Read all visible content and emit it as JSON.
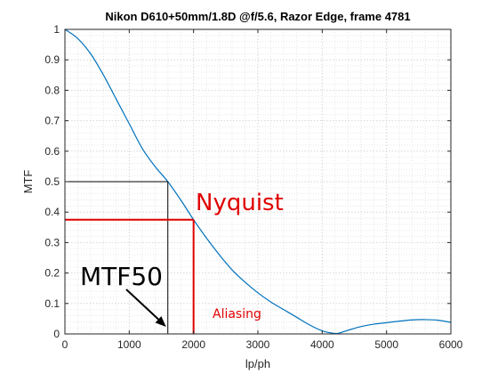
{
  "chart_data": {
    "type": "line",
    "title": "Nikon D610+50mm/1.8D @f/5.6, Razor Edge, frame 4781",
    "xlabel": "lp/ph",
    "ylabel": "MTF",
    "xlim": [
      0,
      6000
    ],
    "ylim": [
      0,
      1
    ],
    "x_ticks": [
      0,
      1000,
      2000,
      3000,
      4000,
      5000,
      6000
    ],
    "y_ticks": [
      0,
      0.1,
      0.2,
      0.3,
      0.4,
      0.5,
      0.6,
      0.7,
      0.8,
      0.9,
      1
    ],
    "x_tick_labels": [
      "0",
      "1000",
      "2000",
      "3000",
      "4000",
      "5000",
      "6000"
    ],
    "y_tick_labels": [
      "0",
      "0.1",
      "0.2",
      "0.3",
      "0.4",
      "0.5",
      "0.6",
      "0.7",
      "0.8",
      "0.9",
      "1"
    ],
    "grid": "minor dotted",
    "series": [
      {
        "color": "#0072bd",
        "x": [
          0,
          200,
          400,
          600,
          800,
          1000,
          1200,
          1400,
          1600,
          1800,
          2000,
          2200,
          2400,
          2600,
          2800,
          3000,
          3200,
          3400,
          3600,
          3800,
          4000,
          4150,
          4250,
          4400,
          4600,
          4800,
          5000,
          5200,
          5400,
          5600,
          5800,
          6000
        ],
        "y": [
          1.0,
          0.97,
          0.92,
          0.85,
          0.77,
          0.69,
          0.61,
          0.55,
          0.5,
          0.44,
          0.375,
          0.315,
          0.26,
          0.21,
          0.17,
          0.135,
          0.105,
          0.08,
          0.055,
          0.03,
          0.01,
          0.003,
          0.002,
          0.012,
          0.024,
          0.032,
          0.037,
          0.042,
          0.046,
          0.047,
          0.045,
          0.038
        ]
      }
    ],
    "mtf50": {
      "x": 1600,
      "y": 0.5,
      "color": "#000000"
    },
    "nyquist": {
      "x": 2000,
      "y": 0.375,
      "color": "#e00000"
    },
    "annotations": {
      "nyquist_label": "Nyquist",
      "mtf50_label": "MTF50",
      "aliasing_label": "Aliasing"
    }
  }
}
